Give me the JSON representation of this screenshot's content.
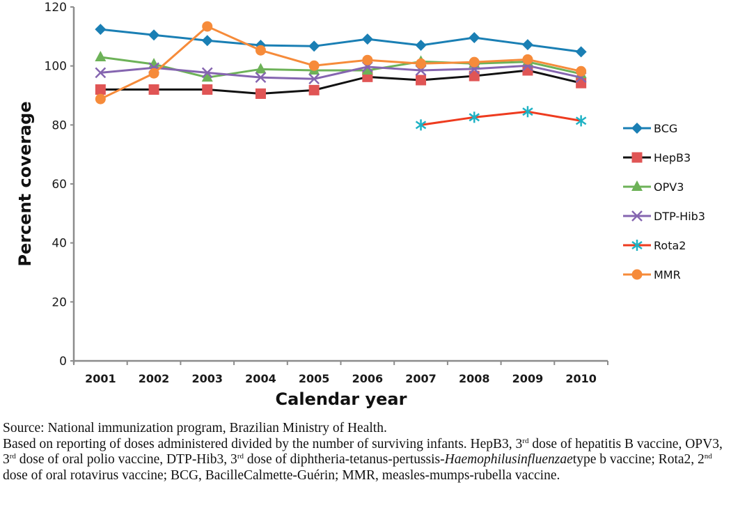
{
  "chart_data": {
    "type": "line",
    "title": "",
    "xlabel": "Calendar year",
    "ylabel": "Percent coverage",
    "ylim": [
      0,
      120
    ],
    "yticks": [
      0,
      20,
      40,
      60,
      80,
      100,
      120
    ],
    "grid": false,
    "legend_position": "right",
    "categories": [
      "2001",
      "2002",
      "2003",
      "2004",
      "2005",
      "2006",
      "2007",
      "2008",
      "2009",
      "2010"
    ],
    "series": [
      {
        "name": "BCG",
        "color": "#1a7fb4",
        "marker": "diamond",
        "values": [
          112.4,
          110.5,
          108.6,
          107.0,
          106.7,
          109.1,
          107.0,
          109.6,
          107.2,
          104.8
        ]
      },
      {
        "name": "HepB3",
        "color": "#111111",
        "marker_color": "#e05555",
        "marker": "square",
        "values": [
          92.0,
          92.0,
          92.0,
          90.6,
          91.8,
          96.3,
          95.2,
          96.6,
          98.5,
          94.2
        ]
      },
      {
        "name": "OPV3",
        "color": "#6db258",
        "marker": "triangle",
        "values": [
          103.0,
          100.6,
          96.1,
          98.9,
          98.5,
          98.5,
          101.5,
          100.8,
          101.4,
          97.3
        ]
      },
      {
        "name": "DTP-Hib3",
        "color": "#8565b0",
        "marker": "x",
        "values": [
          97.7,
          99.4,
          97.7,
          96.1,
          95.6,
          99.7,
          98.5,
          99.0,
          100.1,
          96.1
        ]
      },
      {
        "name": "Rota2",
        "color": "#ee3b1f",
        "marker_color": "#1fb2c4",
        "marker": "star",
        "values": [
          null,
          null,
          null,
          null,
          null,
          null,
          80.0,
          82.6,
          84.5,
          81.4
        ]
      },
      {
        "name": "MMR",
        "color": "#f68b3a",
        "marker": "circle",
        "values": [
          88.8,
          97.5,
          113.4,
          105.3,
          100.1,
          102.0,
          100.8,
          101.3,
          102.2,
          98.2
        ]
      }
    ]
  },
  "caption": {
    "source": "Source: National immunization program, Brazilian Ministry of Health.",
    "note_parts": [
      {
        "text": "Based on reporting of doses administered divided by the number of surviving infants. HepB3, 3"
      },
      {
        "sup": "rd"
      },
      {
        "text": " dose of hepatitis B vaccine, OPV3, 3"
      },
      {
        "sup": "rd"
      },
      {
        "text": " dose of oral polio vaccine, DTP-Hib3, 3"
      },
      {
        "sup": "rd"
      },
      {
        "text": " dose of diphtheria-tetanus-pertussis-"
      },
      {
        "italic": "Haemophilusinfluenzae"
      },
      {
        "text": "type b vaccine; Rota2, 2"
      },
      {
        "sup": "nd"
      },
      {
        "text": " dose of oral rotavirus vaccine; BCG, BacilleCalmette-Guérin; MMR, measles-mumps-rubella vaccine."
      }
    ]
  }
}
